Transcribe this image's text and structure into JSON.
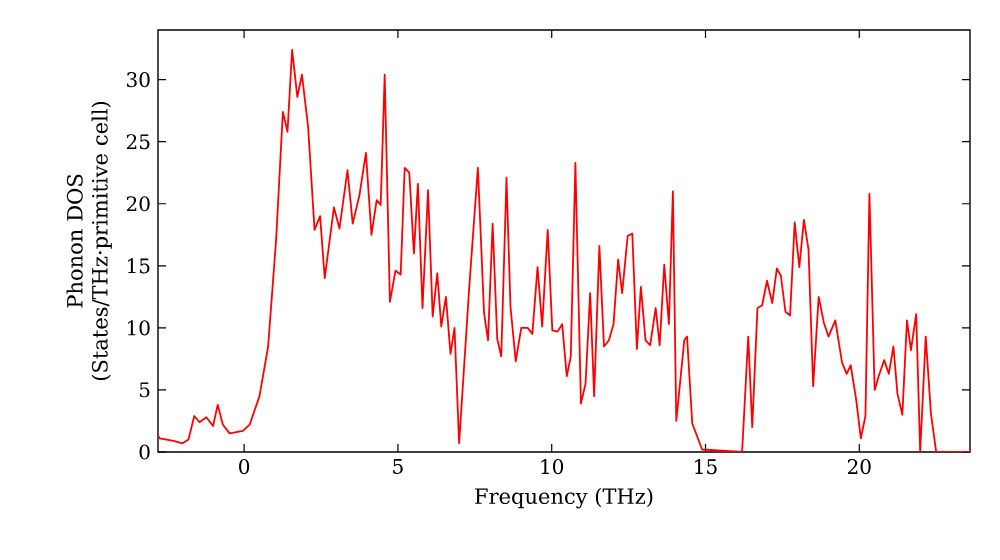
{
  "chart_data": {
    "type": "line",
    "xlabel": "Frequency (THz)",
    "ylabel": "Phonon DOS (States/THz·primitive cell)",
    "xlim": [
      -2.8,
      23.6
    ],
    "ylim": [
      0,
      34
    ],
    "xticks": [
      0,
      5,
      10,
      15,
      20
    ],
    "yticks": [
      0,
      5,
      10,
      15,
      20,
      25,
      30
    ],
    "marker": "none",
    "line_style": "solid",
    "series": [
      {
        "color": "#ff0000",
        "x": [
          -2.8,
          -2.74,
          -2.3,
          -2.0,
          -1.81,
          -1.62,
          -1.45,
          -1.23,
          -1.01,
          -0.86,
          -0.69,
          -0.47,
          -0.04,
          0.18,
          0.5,
          0.78,
          1.04,
          1.26,
          1.41,
          1.56,
          1.73,
          1.88,
          2.08,
          2.29,
          2.47,
          2.62,
          2.92,
          3.1,
          3.36,
          3.53,
          3.75,
          3.96,
          4.14,
          4.31,
          4.44,
          4.57,
          4.74,
          4.92,
          5.09,
          5.22,
          5.37,
          5.52,
          5.65,
          5.8,
          5.98,
          6.13,
          6.28,
          6.41,
          6.56,
          6.71,
          6.84,
          6.99,
          7.32,
          7.6,
          7.8,
          7.93,
          8.08,
          8.23,
          8.36,
          8.53,
          8.66,
          8.83,
          9.01,
          9.22,
          9.37,
          9.54,
          9.69,
          9.87,
          10.02,
          10.19,
          10.34,
          10.49,
          10.62,
          10.77,
          10.95,
          11.1,
          11.25,
          11.38,
          11.55,
          11.7,
          11.86,
          12.01,
          12.16,
          12.29,
          12.47,
          12.62,
          12.77,
          12.9,
          13.05,
          13.2,
          13.38,
          13.51,
          13.66,
          13.81,
          13.94,
          14.05,
          14.31,
          14.4,
          14.57,
          14.89,
          16.19,
          16.39,
          16.52,
          16.69,
          16.84,
          17.0,
          17.17,
          17.32,
          17.45,
          17.6,
          17.75,
          17.9,
          18.05,
          18.2,
          18.35,
          18.5,
          18.68,
          18.85,
          19.0,
          19.22,
          19.44,
          19.59,
          19.72,
          19.9,
          20.05,
          20.2,
          20.33,
          20.5,
          20.63,
          20.81,
          20.96,
          21.11,
          21.24,
          21.4,
          21.55,
          21.68,
          21.85,
          21.98,
          22.16,
          22.33,
          22.5,
          23.6
        ],
        "values": [
          1.3,
          1.1,
          0.9,
          0.7,
          1.0,
          2.9,
          2.4,
          2.8,
          2.1,
          3.8,
          2.2,
          1.5,
          1.7,
          2.2,
          4.5,
          8.5,
          17.1,
          27.4,
          25.8,
          32.4,
          28.6,
          30.4,
          26.2,
          17.9,
          19.0,
          14.0,
          19.7,
          18.0,
          22.7,
          18.4,
          20.7,
          24.1,
          17.5,
          20.3,
          19.9,
          30.4,
          12.1,
          14.6,
          14.3,
          22.9,
          22.5,
          16.0,
          21.6,
          11.6,
          21.1,
          10.9,
          14.4,
          10.1,
          12.5,
          7.9,
          10.0,
          0.7,
          13.3,
          22.9,
          11.2,
          9.0,
          18.4,
          9.1,
          7.7,
          22.1,
          11.7,
          7.3,
          10.0,
          10.0,
          9.5,
          14.9,
          10.1,
          17.9,
          9.8,
          9.7,
          10.3,
          6.1,
          7.7,
          23.3,
          3.9,
          5.5,
          12.8,
          4.5,
          16.6,
          8.5,
          9.0,
          10.3,
          15.5,
          12.8,
          17.4,
          17.6,
          8.3,
          13.3,
          9.0,
          8.6,
          11.6,
          8.6,
          15.1,
          10.3,
          21.0,
          2.5,
          9.0,
          9.3,
          2.3,
          0.2,
          0,
          9.3,
          2.0,
          11.6,
          11.8,
          13.8,
          12.0,
          14.8,
          14.2,
          11.3,
          11.0,
          18.5,
          14.9,
          18.7,
          16.3,
          5.3,
          12.5,
          10.4,
          9.3,
          10.6,
          7.2,
          6.3,
          7.0,
          4.2,
          1.1,
          2.9,
          20.8,
          5.0,
          6.1,
          7.4,
          6.3,
          8.5,
          4.7,
          3.0,
          10.6,
          8.2,
          11.1,
          0,
          9.3,
          3.1,
          0,
          0
        ]
      }
    ]
  }
}
